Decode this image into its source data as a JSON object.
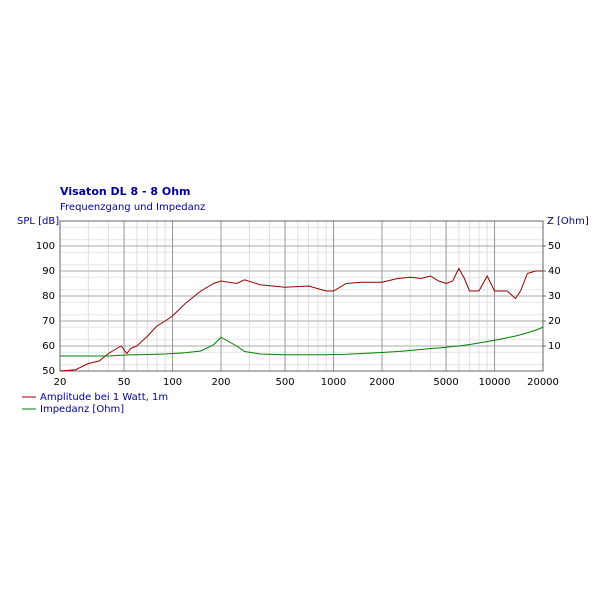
{
  "chart_data": {
    "type": "line",
    "title": "Visaton DL 8 - 8 Ohm",
    "subtitle": "Frequenzgang und Impedanz",
    "y_label": "SPL [dB]",
    "y2_label": "Z [Ohm]",
    "log_x": true,
    "grid": true,
    "x": [
      20,
      25,
      30,
      35,
      40,
      45,
      48,
      52,
      55,
      60,
      70,
      80,
      90,
      100,
      120,
      150,
      180,
      200,
      250,
      280,
      350,
      500,
      700,
      900,
      1000,
      1200,
      1500,
      2000,
      2500,
      3000,
      3500,
      4000,
      4500,
      5000,
      5500,
      6000,
      6500,
      7000,
      8000,
      9000,
      10000,
      12000,
      13500,
      14500,
      16000,
      18000,
      20000
    ],
    "series": [
      {
        "name": "Amplitude bei 1 Watt, 1m",
        "color": "#990000",
        "values": [
          50,
          50.5,
          53,
          54,
          57,
          59,
          60,
          57,
          59,
          60,
          64,
          68,
          70,
          72,
          77,
          82,
          85,
          86,
          85,
          86.5,
          84.5,
          83.5,
          84,
          82,
          82,
          85,
          85.5,
          85.5,
          87,
          87.5,
          87,
          88,
          86,
          85,
          86,
          91,
          87,
          82,
          82,
          88,
          82,
          82,
          79,
          82,
          89,
          90,
          90
        ]
      },
      {
        "name": "Impedanz [Ohm]",
        "color": "#008000",
        "axis": "y2",
        "values": [
          6,
          6,
          6,
          6,
          6,
          6.2,
          6.3,
          6.4,
          6.5,
          6.5,
          6.6,
          6.7,
          6.8,
          7,
          7.3,
          8,
          10.5,
          13.5,
          10,
          7.8,
          6.8,
          6.5,
          6.5,
          6.5,
          6.6,
          6.7,
          7,
          7.4,
          7.8,
          8.2,
          8.6,
          9,
          9.2,
          9.5,
          9.8,
          10,
          10.3,
          10.6,
          11.2,
          11.8,
          12.3,
          13.3,
          14,
          14.5,
          15.3,
          16.3,
          17.5
        ]
      }
    ],
    "xlim": [
      20,
      20000
    ],
    "xticks": [
      20,
      50,
      100,
      200,
      500,
      1000,
      2000,
      5000,
      10000,
      20000
    ],
    "ylim": [
      50,
      110
    ],
    "yticks": [
      50,
      60,
      70,
      80,
      90,
      100
    ],
    "y2lim": [
      0,
      60
    ],
    "y2ticks": [
      10,
      20,
      30,
      40,
      50
    ]
  }
}
